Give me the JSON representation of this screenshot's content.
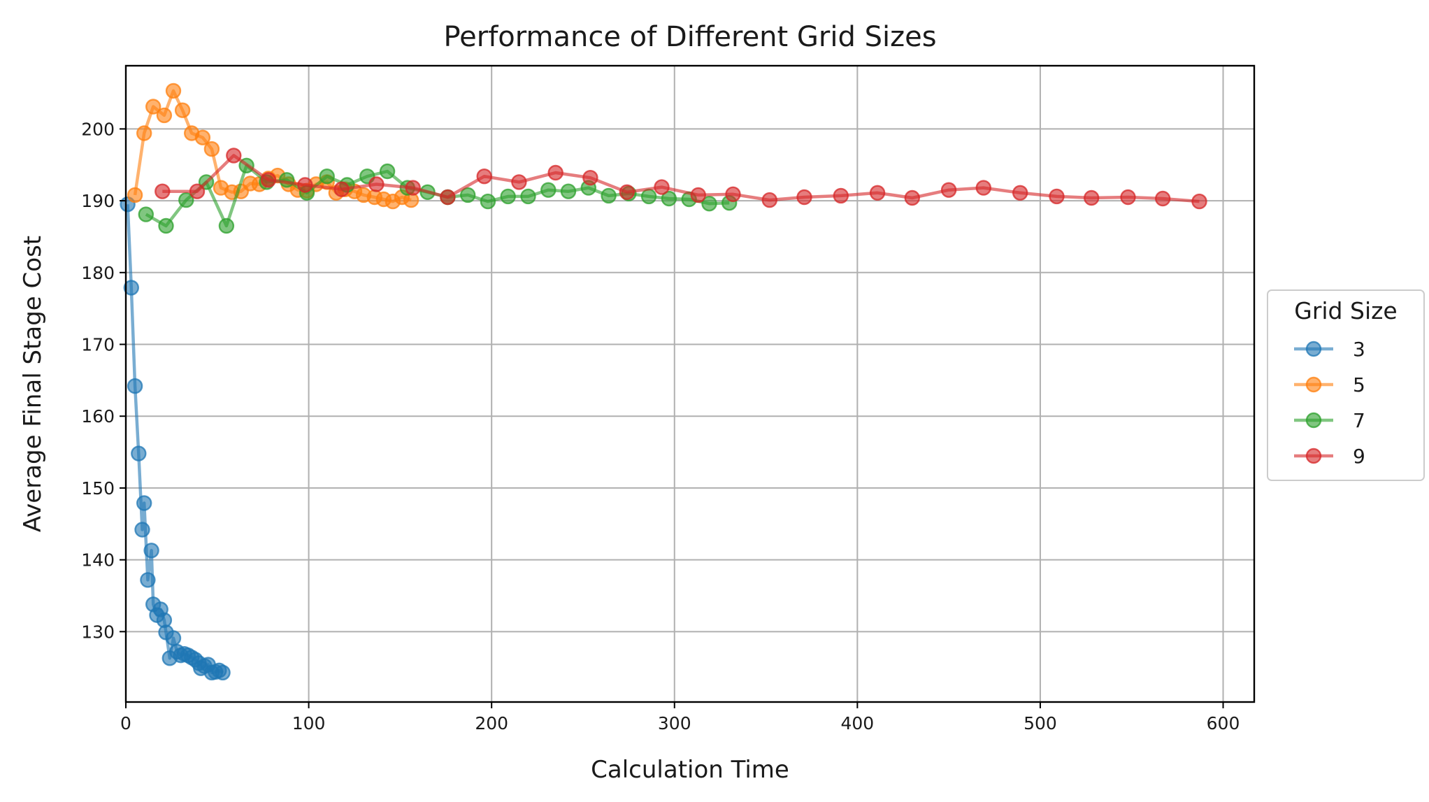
{
  "chart_data": {
    "type": "line",
    "title": "Performance of Different Grid Sizes",
    "xlabel": "Calculation Time",
    "ylabel": "Average Final Stage Cost",
    "xlim": [
      0,
      617
    ],
    "ylim": [
      120.2,
      208.8
    ],
    "xticks": [
      0,
      100,
      200,
      300,
      400,
      500,
      600
    ],
    "yticks": [
      130,
      140,
      150,
      160,
      170,
      180,
      190,
      200
    ],
    "grid": true,
    "legend": {
      "title": "Grid Size",
      "placement": "center-right-outside"
    },
    "series": [
      {
        "name": "3",
        "color": "#1f77b4",
        "points": [
          [
            1,
            189.5
          ],
          [
            3,
            177.9
          ],
          [
            5,
            164.2
          ],
          [
            7,
            154.8
          ],
          [
            9,
            144.2
          ],
          [
            10,
            147.9
          ],
          [
            12,
            137.2
          ],
          [
            14,
            141.3
          ],
          [
            15,
            133.8
          ],
          [
            17,
            132.3
          ],
          [
            19,
            133.1
          ],
          [
            21,
            131.6
          ],
          [
            22,
            129.9
          ],
          [
            24,
            126.3
          ],
          [
            26,
            129.1
          ],
          [
            28,
            127.2
          ],
          [
            30,
            126.7
          ],
          [
            32,
            126.9
          ],
          [
            34,
            126.7
          ],
          [
            36,
            126.4
          ],
          [
            38,
            126.1
          ],
          [
            40,
            125.6
          ],
          [
            41,
            124.9
          ],
          [
            43,
            125.2
          ],
          [
            45,
            125.4
          ],
          [
            47,
            124.3
          ],
          [
            49,
            124.4
          ],
          [
            51,
            124.6
          ],
          [
            53,
            124.3
          ]
        ]
      },
      {
        "name": "5",
        "color": "#ff7f0e",
        "points": [
          [
            5,
            190.8
          ],
          [
            10,
            199.4
          ],
          [
            15,
            203.1
          ],
          [
            21,
            201.9
          ],
          [
            26,
            205.3
          ],
          [
            31,
            202.6
          ],
          [
            36,
            199.4
          ],
          [
            42,
            198.8
          ],
          [
            47,
            197.2
          ],
          [
            52,
            191.8
          ],
          [
            58,
            191.2
          ],
          [
            63,
            191.3
          ],
          [
            68,
            192.4
          ],
          [
            73,
            192.3
          ],
          [
            78,
            193.1
          ],
          [
            83,
            193.5
          ],
          [
            89,
            192.3
          ],
          [
            94,
            191.5
          ],
          [
            99,
            191.4
          ],
          [
            104,
            192.3
          ],
          [
            110,
            192.6
          ],
          [
            115,
            191.1
          ],
          [
            120,
            191.6
          ],
          [
            125,
            191.3
          ],
          [
            130,
            190.8
          ],
          [
            136,
            190.5
          ],
          [
            141,
            190.2
          ],
          [
            146,
            189.9
          ],
          [
            151,
            190.5
          ],
          [
            156,
            190.1
          ]
        ]
      },
      {
        "name": "7",
        "color": "#2ca02c",
        "points": [
          [
            11,
            188.1
          ],
          [
            22,
            186.5
          ],
          [
            33,
            190.1
          ],
          [
            44,
            192.6
          ],
          [
            55,
            186.5
          ],
          [
            66,
            194.9
          ],
          [
            77,
            192.6
          ],
          [
            88,
            192.9
          ],
          [
            99,
            191.1
          ],
          [
            110,
            193.4
          ],
          [
            121,
            192.2
          ],
          [
            132,
            193.4
          ],
          [
            143,
            194.1
          ],
          [
            154,
            191.8
          ],
          [
            165,
            191.2
          ],
          [
            176,
            190.5
          ],
          [
            187,
            190.8
          ],
          [
            198,
            189.9
          ],
          [
            209,
            190.6
          ],
          [
            220,
            190.6
          ],
          [
            231,
            191.5
          ],
          [
            242,
            191.3
          ],
          [
            253,
            191.8
          ],
          [
            264,
            190.7
          ],
          [
            275,
            191.0
          ],
          [
            286,
            190.6
          ],
          [
            297,
            190.3
          ],
          [
            308,
            190.2
          ],
          [
            319,
            189.6
          ],
          [
            330,
            189.7
          ]
        ]
      },
      {
        "name": "9",
        "color": "#d62728",
        "points": [
          [
            20,
            191.3
          ],
          [
            39,
            191.3
          ],
          [
            59,
            196.3
          ],
          [
            78,
            192.9
          ],
          [
            98,
            192.2
          ],
          [
            118,
            191.6
          ],
          [
            137,
            192.3
          ],
          [
            157,
            191.8
          ],
          [
            176,
            190.5
          ],
          [
            196,
            193.4
          ],
          [
            215,
            192.6
          ],
          [
            235,
            193.9
          ],
          [
            254,
            193.2
          ],
          [
            274,
            191.2
          ],
          [
            293,
            191.9
          ],
          [
            313,
            190.8
          ],
          [
            332,
            190.9
          ],
          [
            352,
            190.1
          ],
          [
            371,
            190.5
          ],
          [
            391,
            190.7
          ],
          [
            411,
            191.1
          ],
          [
            430,
            190.4
          ],
          [
            450,
            191.5
          ],
          [
            469,
            191.8
          ],
          [
            489,
            191.1
          ],
          [
            509,
            190.6
          ],
          [
            528,
            190.4
          ],
          [
            548,
            190.5
          ],
          [
            567,
            190.3
          ],
          [
            587,
            189.9
          ]
        ]
      }
    ]
  }
}
